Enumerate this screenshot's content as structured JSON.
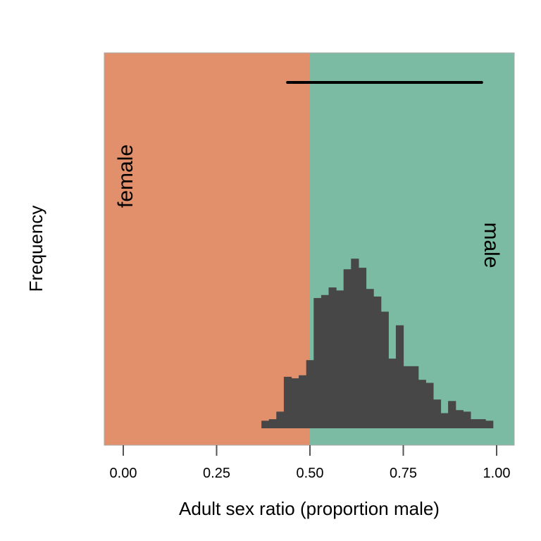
{
  "chart_data": {
    "type": "bar",
    "title": "",
    "xlabel": "Adult sex ratio (proportion male)",
    "ylabel": "Frequency",
    "xlim": [
      -0.05,
      1.05
    ],
    "x_ticks": [
      "0.00",
      "0.25",
      "0.50",
      "0.75",
      "1.00"
    ],
    "x_tick_values": [
      0.0,
      0.25,
      0.5,
      0.75,
      1.0
    ],
    "y_ticks_shown": false,
    "background_regions": [
      {
        "label": "female",
        "x_from": -0.05,
        "x_to": 0.5,
        "color": "#e1906b"
      },
      {
        "label": "male",
        "x_from": 0.5,
        "x_to": 1.05,
        "color": "#7bbba3"
      }
    ],
    "bin_width": 0.02,
    "bin_starts": [
      0.37,
      0.39,
      0.41,
      0.43,
      0.45,
      0.47,
      0.49,
      0.51,
      0.53,
      0.55,
      0.57,
      0.59,
      0.61,
      0.63,
      0.65,
      0.67,
      0.69,
      0.71,
      0.73,
      0.75,
      0.77,
      0.79,
      0.81,
      0.83,
      0.85,
      0.87,
      0.89,
      0.91,
      0.93,
      0.95,
      0.97
    ],
    "values": [
      5,
      6,
      11,
      34,
      33,
      35,
      45,
      86,
      88,
      93,
      91,
      105,
      112,
      106,
      92,
      87,
      77,
      46,
      68,
      41,
      41,
      32,
      30,
      19,
      10,
      18,
      12,
      11,
      6,
      6,
      5
    ],
    "bar_color": "#474747",
    "interval_segment": {
      "x_from": 0.44,
      "x_to": 0.96,
      "color": "#000000"
    },
    "grid": false,
    "legend": "none"
  }
}
